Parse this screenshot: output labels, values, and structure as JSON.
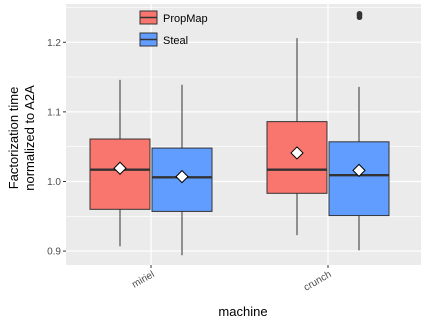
{
  "chart_data": {
    "type": "boxplot",
    "title": "",
    "xlabel": "machine",
    "ylabel_lines": [
      "Factorization time",
      "normalized to A2A"
    ],
    "categories": [
      "miriel",
      "crunch"
    ],
    "ylim": [
      0.88,
      1.255
    ],
    "yticks": [
      0.9,
      1.0,
      1.1,
      1.2
    ],
    "ytick_labels": [
      "0.9",
      "1.0",
      "1.1",
      "1.2"
    ],
    "grid": true,
    "legend_position": "top-left inside",
    "series": [
      {
        "name": "PropMap",
        "color": "#F8766D",
        "boxes": [
          {
            "category": "miriel",
            "whisker_low": 0.907,
            "q1": 0.96,
            "median": 1.017,
            "q3": 1.061,
            "whisker_high": 1.146,
            "mean": 1.019,
            "outliers": []
          },
          {
            "category": "crunch",
            "whisker_low": 0.923,
            "q1": 0.983,
            "median": 1.017,
            "q3": 1.086,
            "whisker_high": 1.206,
            "mean": 1.041,
            "outliers": []
          }
        ]
      },
      {
        "name": "Steal",
        "color": "#619CFF",
        "boxes": [
          {
            "category": "miriel",
            "whisker_low": 0.894,
            "q1": 0.957,
            "median": 1.006,
            "q3": 1.048,
            "whisker_high": 1.139,
            "mean": 1.007,
            "outliers": []
          },
          {
            "category": "crunch",
            "whisker_low": 0.901,
            "q1": 0.951,
            "median": 1.009,
            "q3": 1.057,
            "whisker_high": 1.136,
            "mean": 1.016,
            "outliers": [
              1.236,
              1.239,
              1.241
            ]
          }
        ]
      }
    ]
  }
}
